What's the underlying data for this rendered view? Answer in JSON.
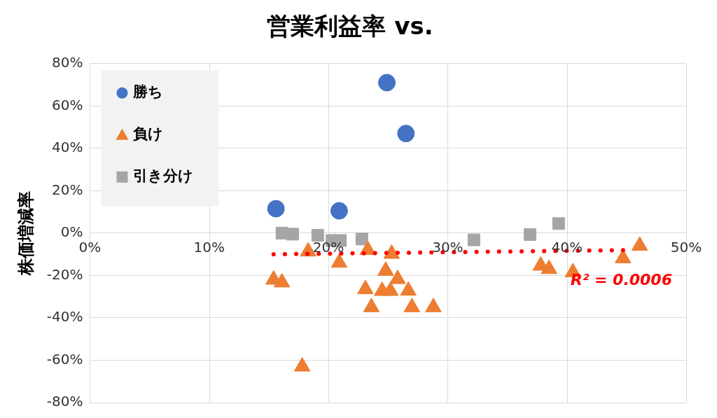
{
  "chart_data": {
    "type": "scatter",
    "title": "営業利益率 vs.",
    "ylabel": "株価増減率",
    "xlim": [
      0,
      50
    ],
    "xticks": [
      {
        "value": 0,
        "label": "0%"
      },
      {
        "value": 10,
        "label": "10%"
      },
      {
        "value": 20,
        "label": "20%"
      },
      {
        "value": 30,
        "label": "30%"
      },
      {
        "value": 40,
        "label": "40%"
      },
      {
        "value": 50,
        "label": "50%"
      }
    ],
    "ylim": [
      -80,
      80
    ],
    "yticks": [
      {
        "value": -80,
        "label": "-80%"
      },
      {
        "value": -60,
        "label": "-60%"
      },
      {
        "value": -40,
        "label": "-40%"
      },
      {
        "value": -20,
        "label": "-20%"
      },
      {
        "value": 0,
        "label": "0%"
      },
      {
        "value": 20,
        "label": "20%"
      },
      {
        "value": 40,
        "label": "40%"
      },
      {
        "value": 60,
        "label": "60%"
      },
      {
        "value": 80,
        "label": "80%"
      }
    ],
    "grid": true,
    "legend": "top left",
    "series": [
      {
        "name": "勝ち",
        "color": "#4472c4",
        "marker": "circle",
        "x": [
          24.9,
          26.5,
          15.6,
          20.9
        ],
        "values": [
          71,
          47,
          11.5,
          10.5
        ]
      },
      {
        "name": "負け",
        "color": "#ed7d31",
        "marker": "triangle",
        "x": [
          15.4,
          16.1,
          17.8,
          18.3,
          20.9,
          23.3,
          25.3,
          24.8,
          25.8,
          23.1,
          24.5,
          25.2,
          26.7,
          23.6,
          27.0,
          28.8,
          46.1,
          44.7,
          37.8,
          38.5,
          40.5
        ],
        "values": [
          -22,
          -23.3,
          -63,
          -8.7,
          -14,
          -8,
          -9.8,
          -17.8,
          -21.7,
          -26.5,
          -27.3,
          -27.3,
          -27.2,
          -35,
          -35,
          -35,
          -6,
          -11.9,
          -15.4,
          -17,
          -18.5
        ]
      },
      {
        "name": "引き分け",
        "color": "#a5a5a5",
        "marker": "square",
        "x": [
          16.1,
          17.0,
          19.1,
          20.3,
          21.0,
          22.8,
          32.2,
          36.9,
          39.3
        ],
        "values": [
          0,
          -0.5,
          -1,
          -3.5,
          -3.5,
          -2.8,
          -3.2,
          -0.7,
          4.5
        ]
      },
      {
        "type": "line",
        "color": "#ff0000",
        "marker": "none",
        "line_style": "dotted",
        "x": [
          15.4,
          45.5
        ],
        "values": [
          -10,
          -8
        ]
      }
    ],
    "annotations": [
      "R² = 0.0006"
    ]
  }
}
